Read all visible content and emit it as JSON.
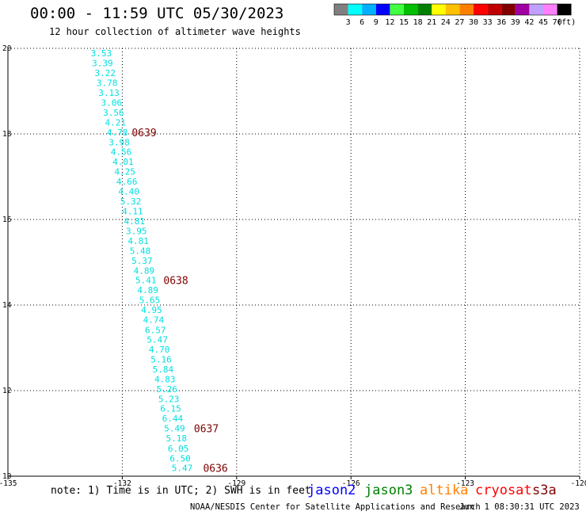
{
  "header": {
    "title": "00:00 - 11:59 UTC 05/30/2023",
    "subtitle": "12 hour collection of altimeter wave heights"
  },
  "colorbar": {
    "colors": [
      "#808080",
      "#00ffff",
      "#00b0ff",
      "#0000ff",
      "#40ff40",
      "#00c000",
      "#008000",
      "#ffff00",
      "#ffc000",
      "#ff8000",
      "#ff0000",
      "#c00000",
      "#800000",
      "#a000a0",
      "#c0a0ff",
      "#ff80ff",
      "#000000"
    ],
    "labels": [
      "3",
      "6",
      "9",
      "12",
      "15",
      "18",
      "21",
      "24",
      "27",
      "30",
      "33",
      "36",
      "39",
      "42",
      "45",
      "70"
    ],
    "unit": "(ft)"
  },
  "chart_data": {
    "type": "scatter",
    "xlim": [
      -135,
      -120
    ],
    "ylim": [
      10,
      20
    ],
    "x_ticks": [
      -135,
      -132,
      -129,
      -126,
      -123,
      -120
    ],
    "x_tick_labels": [
      "-135",
      "-132",
      "-129",
      "-126",
      "-123",
      "-120"
    ],
    "y_ticks": [
      10,
      12,
      14,
      16,
      18,
      20
    ],
    "y_tick_labels": [
      "10",
      "12",
      "14",
      "16",
      "18",
      "20"
    ],
    "grid": true,
    "series": [
      {
        "name": "jason3",
        "color": "#00e0e0",
        "points": [
          {
            "lon": -132.55,
            "lat": 19.89,
            "label": "3.53"
          },
          {
            "lon": -132.52,
            "lat": 19.66,
            "label": "3.39"
          },
          {
            "lon": -132.45,
            "lat": 19.43,
            "label": "3.22"
          },
          {
            "lon": -132.4,
            "lat": 19.19,
            "label": "3.78"
          },
          {
            "lon": -132.35,
            "lat": 18.96,
            "label": "3.13"
          },
          {
            "lon": -132.28,
            "lat": 18.73,
            "label": "3.06"
          },
          {
            "lon": -132.23,
            "lat": 18.5,
            "label": "3.56"
          },
          {
            "lon": -132.18,
            "lat": 18.27,
            "label": "4.21"
          },
          {
            "lon": -132.13,
            "lat": 18.04,
            "label": "4.78"
          },
          {
            "lon": -132.08,
            "lat": 17.81,
            "label": "3.98"
          },
          {
            "lon": -132.03,
            "lat": 17.58,
            "label": "4.56"
          },
          {
            "lon": -131.98,
            "lat": 17.35,
            "label": "4.01"
          },
          {
            "lon": -131.93,
            "lat": 17.12,
            "label": "4.25"
          },
          {
            "lon": -131.88,
            "lat": 16.89,
            "label": "4.66"
          },
          {
            "lon": -131.83,
            "lat": 16.66,
            "label": "4.40"
          },
          {
            "lon": -131.78,
            "lat": 16.43,
            "label": "5.32"
          },
          {
            "lon": -131.73,
            "lat": 16.19,
            "label": "4.11"
          },
          {
            "lon": -131.68,
            "lat": 15.96,
            "label": "4.81"
          },
          {
            "lon": -131.63,
            "lat": 15.73,
            "label": "3.95"
          },
          {
            "lon": -131.58,
            "lat": 15.5,
            "label": "4.81"
          },
          {
            "lon": -131.53,
            "lat": 15.27,
            "label": "5.48"
          },
          {
            "lon": -131.48,
            "lat": 15.04,
            "label": "5.37"
          },
          {
            "lon": -131.43,
            "lat": 14.81,
            "label": "4.89"
          },
          {
            "lon": -131.38,
            "lat": 14.58,
            "label": "5.41"
          },
          {
            "lon": -131.33,
            "lat": 14.35,
            "label": "4.89"
          },
          {
            "lon": -131.28,
            "lat": 14.12,
            "label": "5.65"
          },
          {
            "lon": -131.23,
            "lat": 13.89,
            "label": "4.95"
          },
          {
            "lon": -131.18,
            "lat": 13.66,
            "label": "4.74"
          },
          {
            "lon": -131.13,
            "lat": 13.42,
            "label": "6.57"
          },
          {
            "lon": -131.08,
            "lat": 13.19,
            "label": "5.47"
          },
          {
            "lon": -131.03,
            "lat": 12.96,
            "label": "4.70"
          },
          {
            "lon": -130.98,
            "lat": 12.73,
            "label": "5.16"
          },
          {
            "lon": -130.93,
            "lat": 12.5,
            "label": "5.84"
          },
          {
            "lon": -130.88,
            "lat": 12.27,
            "label": "4.83"
          },
          {
            "lon": -130.83,
            "lat": 12.04,
            "label": "5.26"
          },
          {
            "lon": -130.78,
            "lat": 11.81,
            "label": "5.23"
          },
          {
            "lon": -130.73,
            "lat": 11.58,
            "label": "6.15"
          },
          {
            "lon": -130.68,
            "lat": 11.35,
            "label": "6.44"
          },
          {
            "lon": -130.63,
            "lat": 11.12,
            "label": "5.49"
          },
          {
            "lon": -130.58,
            "lat": 10.89,
            "label": "5.18"
          },
          {
            "lon": -130.53,
            "lat": 10.65,
            "label": "6.05"
          },
          {
            "lon": -130.48,
            "lat": 10.42,
            "label": "6.50"
          },
          {
            "lon": -130.43,
            "lat": 10.19,
            "label": "5.47"
          }
        ]
      }
    ],
    "time_annotations": [
      {
        "lon": -131.75,
        "lat": 18.04,
        "label": "0639",
        "color": "#800000"
      },
      {
        "lon": -130.92,
        "lat": 14.58,
        "label": "0638",
        "color": "#800000"
      },
      {
        "lon": -130.12,
        "lat": 11.12,
        "label": "0637",
        "color": "#800000"
      },
      {
        "lon": -129.88,
        "lat": 10.19,
        "label": "0636",
        "color": "#800000"
      }
    ]
  },
  "footer": {
    "note": "note: 1) Time is in UTC; 2) SWH is in feet",
    "credit": "NOAA/NESDIS Center for Satellite Applications and Research",
    "timestamp": "Jun  1 08:30:31 UTC 2023",
    "satellites": [
      {
        "name": "jason2",
        "color": "#0000ff"
      },
      {
        "name": "jason3",
        "color": "#008000"
      },
      {
        "name": "altika",
        "color": "#ff8000"
      },
      {
        "name": "cryosat",
        "color": "#ff0000"
      },
      {
        "name": "s3a",
        "color": "#800000"
      }
    ]
  }
}
